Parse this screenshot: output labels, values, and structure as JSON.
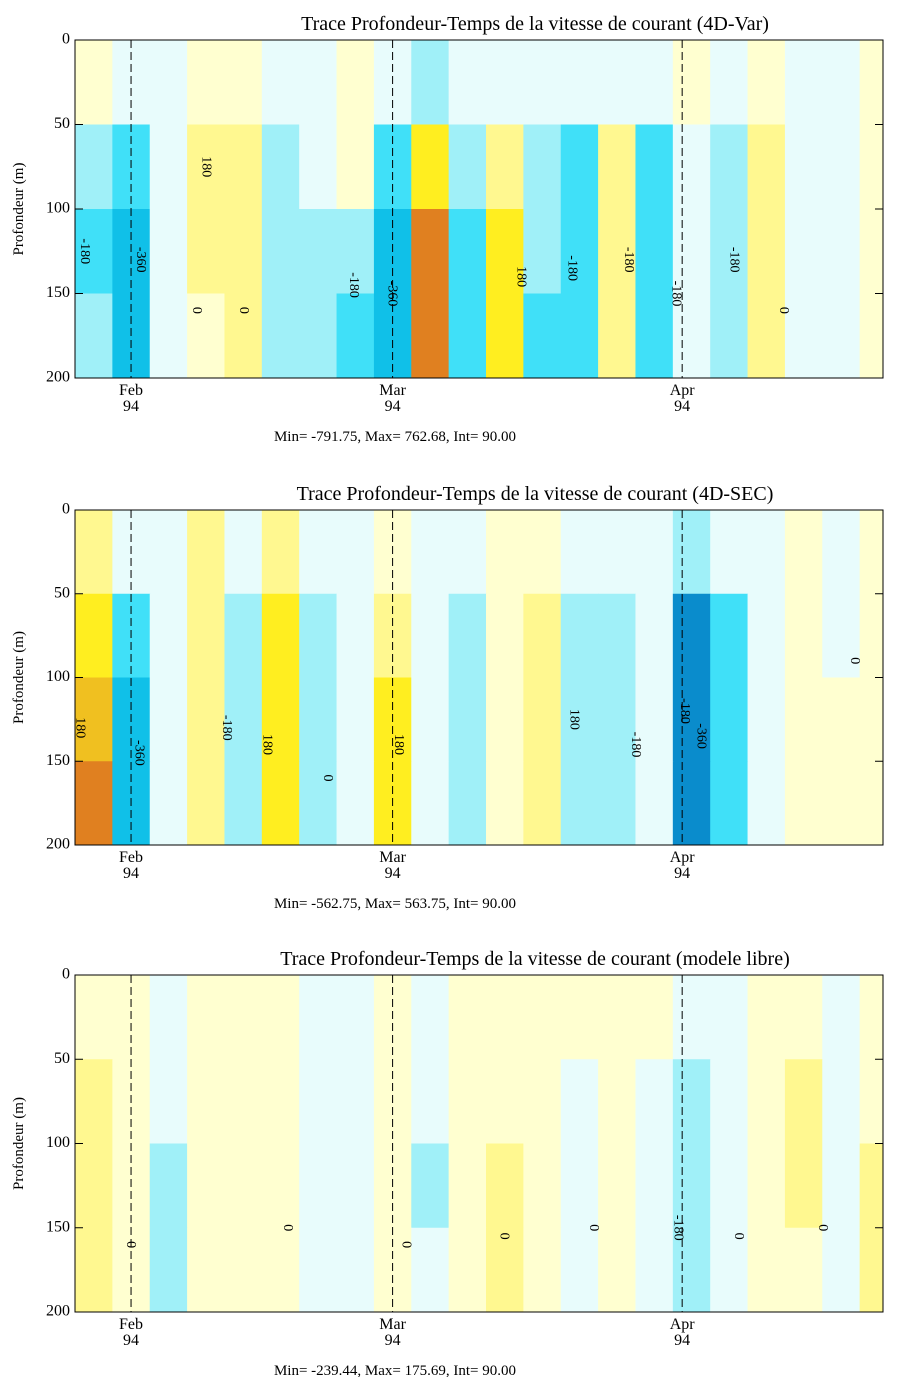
{
  "chart_data": [
    {
      "type": "contour",
      "title": "Trace Profondeur-Temps de la vitesse de courant (4D-Var)",
      "subtitle": "Min= -791.75, Max= 762.68, Int= 90.00",
      "y_label": "Profondeur (m)",
      "xlim": [
        26,
        112.5
      ],
      "xticks": [
        {
          "value": 32,
          "label": "Feb 94"
        },
        {
          "value": 60,
          "label": "Mar 94"
        },
        {
          "value": 91,
          "label": "Apr 94"
        }
      ],
      "ylim": [
        200,
        0
      ],
      "yticks": [
        0,
        50,
        100,
        150,
        200
      ],
      "grid": true,
      "levels": [
        -360,
        -270,
        -180,
        -90,
        0,
        90,
        180,
        270,
        360
      ],
      "colors": [
        "#0a8ccc",
        "#10c0e8",
        "#40e0f8",
        "#a0f0f8",
        "#e8fcfc",
        "#ffffd0",
        "#fff890",
        "#ffee20",
        "#f0c020",
        "#e08020"
      ],
      "x": [
        26,
        30,
        34,
        38,
        42,
        46,
        50,
        54,
        58,
        62,
        66,
        70,
        74,
        78,
        82,
        86,
        90,
        94,
        98,
        102,
        106,
        110
      ],
      "depth": [
        0,
        50,
        100,
        150
      ],
      "z": [
        [
          30,
          -40,
          -60,
          40,
          60,
          -50,
          -40,
          20,
          -80,
          -100,
          -80,
          -70,
          -60,
          -90,
          -60,
          -70,
          40,
          -40,
          30,
          -60,
          -40,
          40
        ],
        [
          -150,
          -250,
          -80,
          110,
          120,
          -100,
          -90,
          30,
          -200,
          250,
          -150,
          150,
          -100,
          -200,
          100,
          -200,
          -80,
          -150,
          110,
          -70,
          -30,
          30
        ],
        [
          -200,
          -330,
          -80,
          100,
          110,
          -120,
          -110,
          -150,
          -300,
          450,
          -250,
          200,
          -150,
          -250,
          120,
          -250,
          -90,
          -180,
          120,
          -60,
          -20,
          40
        ],
        [
          -150,
          -300,
          -60,
          80,
          90,
          -130,
          -100,
          -200,
          -350,
          400,
          -250,
          200,
          -200,
          -250,
          100,
          -200,
          -60,
          -150,
          110,
          -50,
          -10,
          80
        ]
      ],
      "annotations": [
        {
          "text": "-180",
          "x": 27,
          "depth": 125
        },
        {
          "text": "-360",
          "x": 33,
          "depth": 130
        },
        {
          "text": "180",
          "x": 40,
          "depth": 75
        },
        {
          "text": "0",
          "x": 39,
          "depth": 160
        },
        {
          "text": "0",
          "x": 44,
          "depth": 160
        },
        {
          "text": "-180",
          "x": 55.8,
          "depth": 145
        },
        {
          "text": "-360",
          "x": 59.9,
          "depth": 150
        },
        {
          "text": "180",
          "x": 73.7,
          "depth": 140
        },
        {
          "text": "-180",
          "x": 79.2,
          "depth": 135
        },
        {
          "text": "-180",
          "x": 85.2,
          "depth": 130
        },
        {
          "text": "-180",
          "x": 90.3,
          "depth": 150
        },
        {
          "text": "-180",
          "x": 96.5,
          "depth": 130
        },
        {
          "text": "0",
          "x": 101.8,
          "depth": 160
        }
      ]
    },
    {
      "type": "contour",
      "title": "Trace Profondeur-Temps de la vitesse de courant (4D-SEC)",
      "subtitle": "Min= -562.75, Max= 563.75, Int= 90.00",
      "y_label": "Profondeur (m)",
      "xlim": [
        26,
        112.5
      ],
      "xticks": [
        {
          "value": 32,
          "label": "Feb 94"
        },
        {
          "value": 60,
          "label": "Mar 94"
        },
        {
          "value": 91,
          "label": "Apr 94"
        }
      ],
      "ylim": [
        200,
        0
      ],
      "yticks": [
        0,
        50,
        100,
        150,
        200
      ],
      "grid": true,
      "levels": [
        -360,
        -270,
        -180,
        -90,
        0,
        90,
        180,
        270,
        360
      ],
      "colors": [
        "#0a8ccc",
        "#10c0e8",
        "#40e0f8",
        "#a0f0f8",
        "#e8fcfc",
        "#ffffd0",
        "#fff890",
        "#ffee20",
        "#f0c020",
        "#e08020"
      ],
      "x": [
        26,
        30,
        34,
        38,
        42,
        46,
        50,
        54,
        58,
        62,
        66,
        70,
        74,
        78,
        82,
        86,
        90,
        94,
        98,
        102,
        106,
        110
      ],
      "depth": [
        0,
        50,
        100,
        150
      ],
      "z": [
        [
          150,
          -50,
          -30,
          100,
          -40,
          100,
          -40,
          -30,
          80,
          -30,
          -60,
          20,
          60,
          -20,
          -40,
          -30,
          -100,
          -80,
          -30,
          40,
          -20,
          20
        ],
        [
          250,
          -250,
          -60,
          130,
          -150,
          200,
          -120,
          -60,
          150,
          -60,
          -100,
          20,
          140,
          -100,
          -150,
          -40,
          -400,
          -250,
          -60,
          60,
          -20,
          60
        ],
        [
          350,
          -300,
          -80,
          120,
          -180,
          250,
          -130,
          -60,
          220,
          -50,
          -110,
          10,
          170,
          -130,
          -170,
          -40,
          -450,
          -250,
          -70,
          50,
          10,
          80
        ],
        [
          400,
          -280,
          -60,
          100,
          -170,
          260,
          -120,
          -50,
          200,
          -40,
          -100,
          20,
          150,
          -120,
          -160,
          -40,
          -400,
          -200,
          -60,
          60,
          20,
          60
        ]
      ],
      "annotations": [
        {
          "text": "180",
          "x": 26.5,
          "depth": 130
        },
        {
          "text": "-360",
          "x": 32.8,
          "depth": 145
        },
        {
          "text": "-180",
          "x": 42.2,
          "depth": 130
        },
        {
          "text": "180",
          "x": 46.5,
          "depth": 140
        },
        {
          "text": "0",
          "x": 53,
          "depth": 160
        },
        {
          "text": "180",
          "x": 60.6,
          "depth": 140
        },
        {
          "text": "180",
          "x": 79.4,
          "depth": 125
        },
        {
          "text": "-180",
          "x": 86,
          "depth": 140
        },
        {
          "text": "-180",
          "x": 91.2,
          "depth": 120
        },
        {
          "text": "-360",
          "x": 93,
          "depth": 135
        },
        {
          "text": "0",
          "x": 109.4,
          "depth": 90
        }
      ]
    },
    {
      "type": "contour",
      "title": "Trace Profondeur-Temps de la vitesse de courant (modele libre)",
      "subtitle": "Min= -239.44, Max= 175.69, Int= 90.00",
      "y_label": "Profondeur (m)",
      "xlim": [
        26,
        112.5
      ],
      "xticks": [
        {
          "value": 32,
          "label": "Feb 94"
        },
        {
          "value": 60,
          "label": "Mar 94"
        },
        {
          "value": 91,
          "label": "Apr 94"
        }
      ],
      "ylim": [
        200,
        0
      ],
      "yticks": [
        0,
        50,
        100,
        150,
        200
      ],
      "grid": true,
      "levels": [
        -360,
        -270,
        -180,
        -90,
        0,
        90,
        180,
        270,
        360
      ],
      "colors": [
        "#0a8ccc",
        "#10c0e8",
        "#40e0f8",
        "#a0f0f8",
        "#e8fcfc",
        "#ffffd0",
        "#fff890",
        "#ffee20",
        "#f0c020",
        "#e08020"
      ],
      "x": [
        26,
        30,
        34,
        38,
        42,
        46,
        50,
        54,
        58,
        62,
        66,
        70,
        74,
        78,
        82,
        86,
        90,
        94,
        98,
        102,
        106,
        110
      ],
      "depth": [
        0,
        50,
        100,
        150
      ],
      "z": [
        [
          20,
          20,
          -30,
          20,
          20,
          20,
          -20,
          -30,
          20,
          -20,
          20,
          20,
          20,
          20,
          20,
          20,
          -20,
          -30,
          20,
          60,
          -20,
          40
        ],
        [
          100,
          20,
          -40,
          20,
          20,
          20,
          -40,
          -40,
          20,
          -40,
          20,
          20,
          20,
          -40,
          20,
          -40,
          -100,
          -60,
          20,
          100,
          -30,
          60
        ],
        [
          100,
          20,
          -100,
          20,
          20,
          20,
          -40,
          -40,
          20,
          -100,
          20,
          100,
          20,
          -40,
          20,
          -60,
          -180,
          -60,
          20,
          100,
          -30,
          100
        ],
        [
          100,
          20,
          -100,
          20,
          20,
          20,
          -40,
          -40,
          20,
          -40,
          20,
          120,
          20,
          -40,
          20,
          -60,
          -150,
          -50,
          20,
          80,
          -20,
          100
        ]
      ],
      "annotations": [
        {
          "text": "0",
          "x": 31.9,
          "depth": 160
        },
        {
          "text": "0",
          "x": 48.7,
          "depth": 150
        },
        {
          "text": "0",
          "x": 61.4,
          "depth": 160
        },
        {
          "text": "0",
          "x": 71.9,
          "depth": 155
        },
        {
          "text": "0",
          "x": 81.5,
          "depth": 150
        },
        {
          "text": "-180",
          "x": 90.5,
          "depth": 150
        },
        {
          "text": "0",
          "x": 97,
          "depth": 155
        },
        {
          "text": "0",
          "x": 106,
          "depth": 150
        }
      ]
    }
  ]
}
